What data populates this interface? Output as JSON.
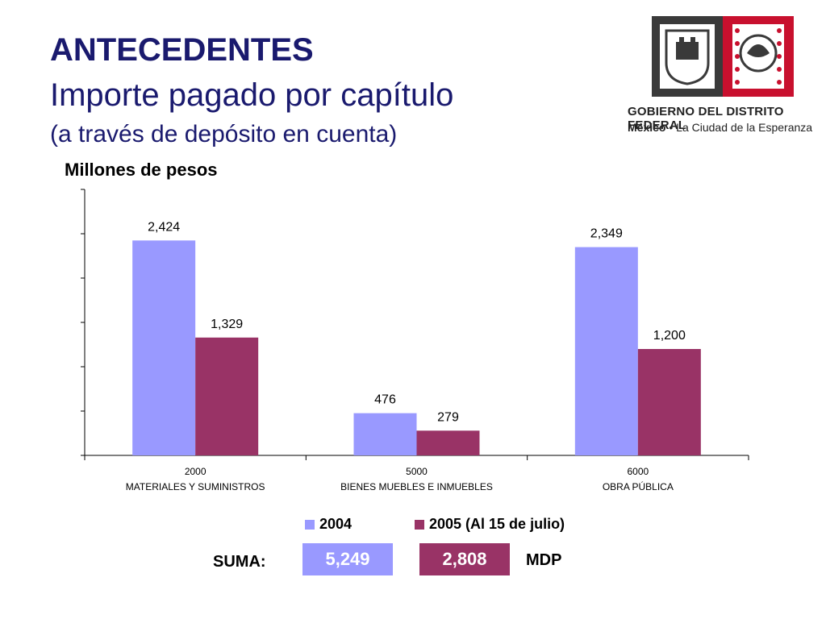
{
  "title": "ANTECEDENTES",
  "subtitle": "Importe pagado por capítulo",
  "subtitle2": "(a través de depósito en cuenta)",
  "header_logo": {
    "line1": "GOBIERNO DEL DISTRITO FEDERAL",
    "line2_bold": "México",
    "line2_sep": " • ",
    "line2_rest": "La Ciudad de la Esperanza"
  },
  "colors": {
    "series_2004": "#9999ff",
    "series_2005": "#993366",
    "title": "#1a1a6e"
  },
  "chart_data": {
    "type": "bar",
    "title": "",
    "ylabel": "Millones de pesos",
    "categories": [
      {
        "code": "2000",
        "name": "MATERIALES Y SUMINISTROS"
      },
      {
        "code": "5000",
        "name": "BIENES MUEBLES E INMUEBLES"
      },
      {
        "code": "6000",
        "name": "OBRA PÚBLICA"
      }
    ],
    "series": [
      {
        "name": "2004",
        "values": [
          2424,
          476,
          2349
        ],
        "labels": [
          "2,424",
          "476",
          "2,349"
        ],
        "color": "#9999ff"
      },
      {
        "name": "2005 (Al 15 de julio)",
        "values": [
          1329,
          279,
          1200
        ],
        "labels": [
          "1,329",
          "279",
          "1,200"
        ],
        "color": "#993366"
      }
    ],
    "ylim": [
      0,
      3000
    ],
    "yticks": [
      0,
      500,
      1000,
      1500,
      2000,
      2500,
      3000
    ],
    "grid": false,
    "legend": "bottom"
  },
  "summary": {
    "label": "SUMA:",
    "total_2004": "5,249",
    "total_2005": "2,808",
    "unit": "MDP"
  }
}
